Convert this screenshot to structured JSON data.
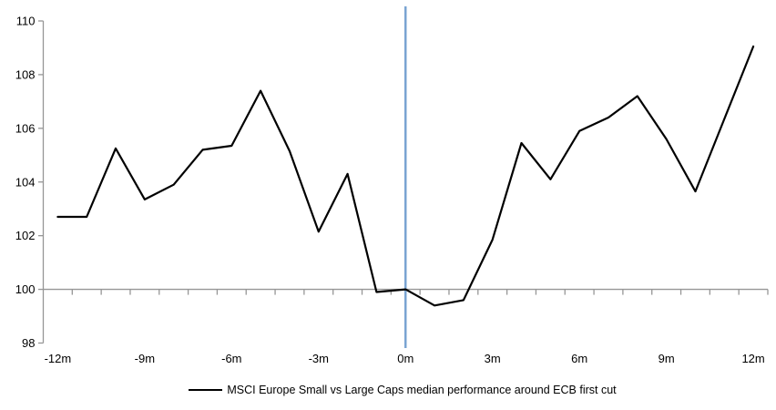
{
  "chart_data": {
    "type": "line",
    "title": "",
    "x_months": [
      -12,
      -11,
      -10,
      -9,
      -8,
      -7,
      -6,
      -5,
      -4,
      -3,
      -2,
      -1,
      0,
      1,
      2,
      3,
      4,
      5,
      6,
      7,
      8,
      9,
      10,
      11,
      12
    ],
    "series": [
      {
        "name": "MSCI Europe Small vs Large Caps median performance around ECB first cut",
        "values": [
          102.7,
          102.7,
          105.25,
          103.35,
          103.9,
          105.2,
          105.35,
          107.4,
          105.15,
          102.15,
          104.3,
          99.9,
          100.0,
          99.4,
          99.6,
          101.85,
          105.45,
          104.1,
          105.9,
          106.4,
          107.2,
          105.6,
          103.65,
          106.35,
          109.05
        ]
      }
    ],
    "x_tick_labels": [
      "-12m",
      "-9m",
      "-6m",
      "-3m",
      "0m",
      "3m",
      "6m",
      "9m",
      "12m"
    ],
    "x_label_every": 3,
    "y_ticks": [
      98,
      100,
      102,
      104,
      106,
      108,
      110
    ],
    "ylim": [
      98,
      110
    ],
    "x_axis_cross_at": 100,
    "event_line_at_month": 0,
    "grid": "off",
    "legend_position": "bottom",
    "colors": {
      "series_line": "#000000",
      "event_line": "#7aa4d2",
      "axis": "#969696",
      "text": "#000000"
    }
  }
}
